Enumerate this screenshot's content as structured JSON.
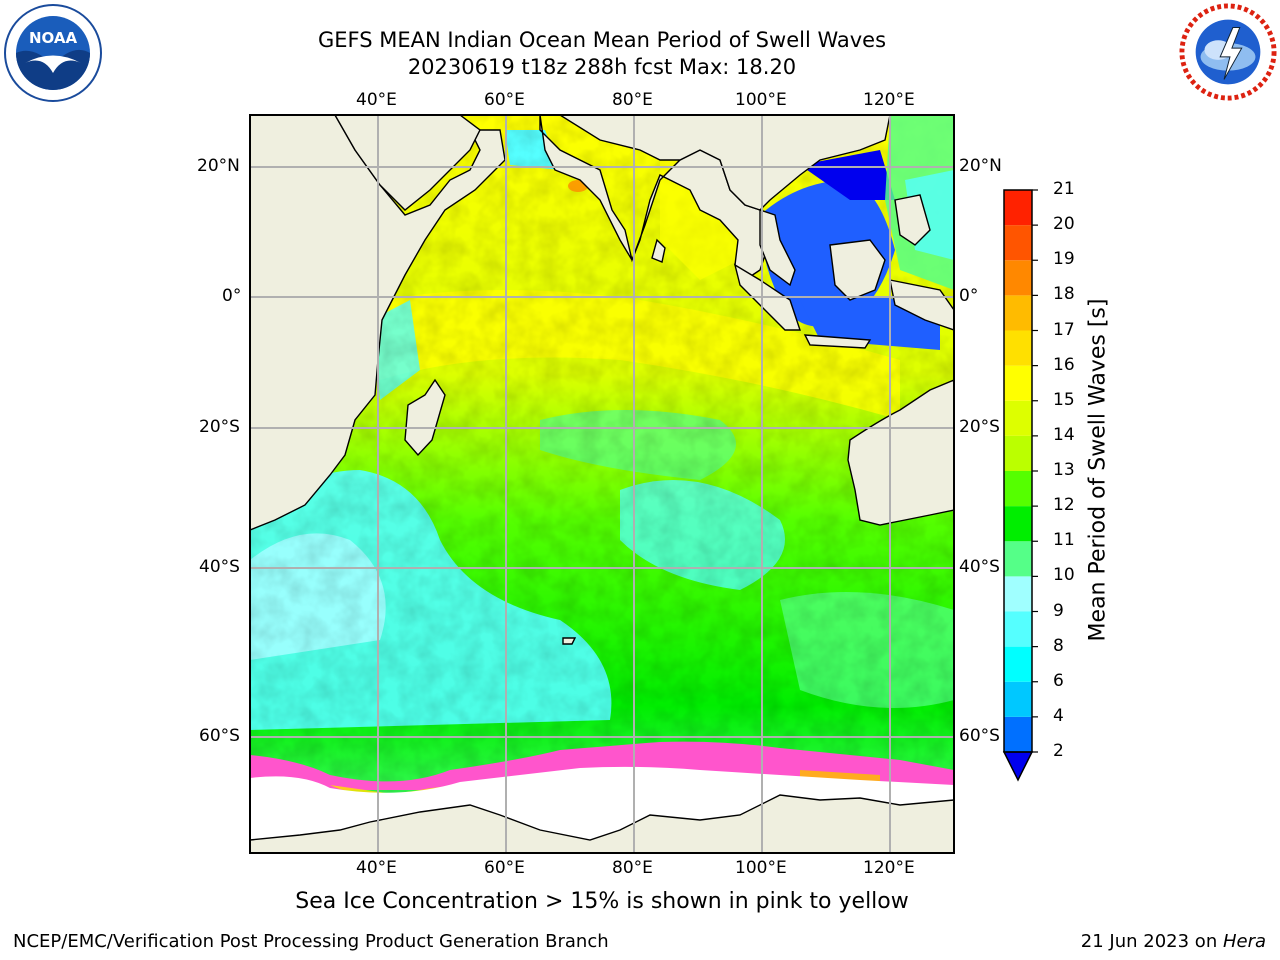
{
  "title_line1": "GEFS MEAN Indian Ocean Mean Period of Swell Waves",
  "title_line2": "20230619 t18z 288h fcst   Max: 18.20",
  "note": "Sea Ice Concentration > 15% is shown in pink to yellow",
  "footer_left": "NCEP/EMC/Verification Post Processing Product Generation Branch",
  "footer_right_date": "21 Jun 2023 on ",
  "footer_right_host": "Hera",
  "logos": {
    "noaa": {
      "text": "NOAA",
      "ring_text": "NATIONAL OCEANIC AND ATMOSPHERIC ADMINISTRATION · U.S. DEPARTMENT OF COMMERCE"
    },
    "nws": {
      "ring_text": "NATIONAL WEATHER SERVICE"
    }
  },
  "map": {
    "lon_labels": [
      "40°E",
      "60°E",
      "80°E",
      "100°E",
      "120°E"
    ],
    "lat_labels": [
      "20°N",
      "0°",
      "20°S",
      "40°S",
      "60°S"
    ],
    "extent": {
      "lon": [
        20,
        130
      ],
      "lat": [
        -72,
        28
      ]
    },
    "colors": {
      "land": "#efefdf",
      "grid": "#b0b0b0",
      "ice": "#ff55cc"
    }
  },
  "colorbar": {
    "title": "Mean Period of Swell Waves [s]",
    "levels": [
      "2",
      "4",
      "6",
      "8",
      "9",
      "10",
      "11",
      "12",
      "13",
      "14",
      "15",
      "16",
      "17",
      "18",
      "19",
      "20",
      "21"
    ],
    "colors": [
      "#0070ff",
      "#00c8ff",
      "#00ffff",
      "#55ffff",
      "#a0ffff",
      "#55ff88",
      "#00ee00",
      "#55ff00",
      "#bbff00",
      "#ddff00",
      "#ffff00",
      "#ffe000",
      "#ffbb00",
      "#ff8800",
      "#ff5500",
      "#ff2200"
    ],
    "under_color": "#0000ee"
  }
}
